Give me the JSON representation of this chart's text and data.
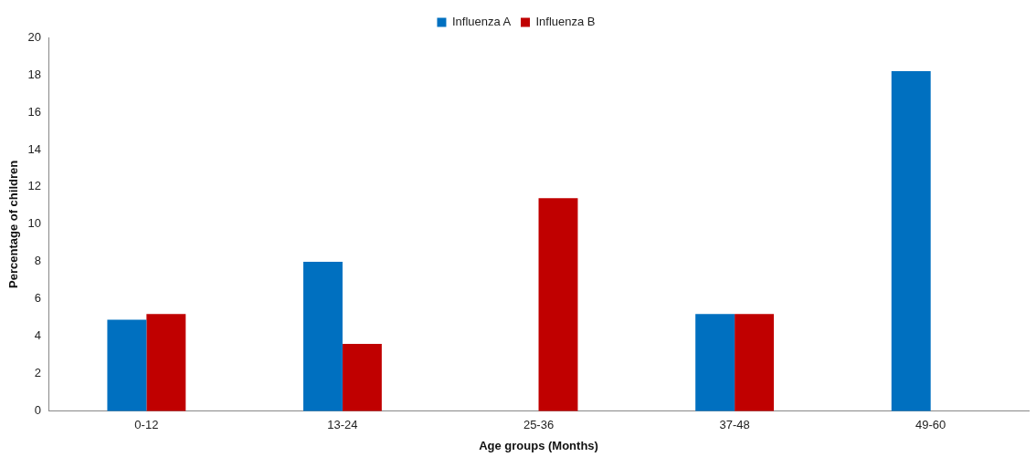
{
  "chart_data": {
    "type": "bar",
    "xlabel": "Age groups (Months)",
    "ylabel": "Percentage of children",
    "categories": [
      "0-12",
      "13-24",
      "25-36",
      "37-48",
      "49-60"
    ],
    "series": [
      {
        "name": "Influenza A",
        "color": "#0070c0",
        "values": [
          4.9,
          8.0,
          0,
          5.2,
          18.2
        ]
      },
      {
        "name": "Influenza B",
        "color": "#c00000",
        "values": [
          5.2,
          3.6,
          11.4,
          5.2,
          0
        ]
      }
    ],
    "ylim": [
      0,
      20
    ],
    "yticks": [
      0,
      2,
      4,
      6,
      8,
      10,
      12,
      14,
      16,
      18,
      20
    ],
    "grid": false,
    "legend": "top"
  }
}
